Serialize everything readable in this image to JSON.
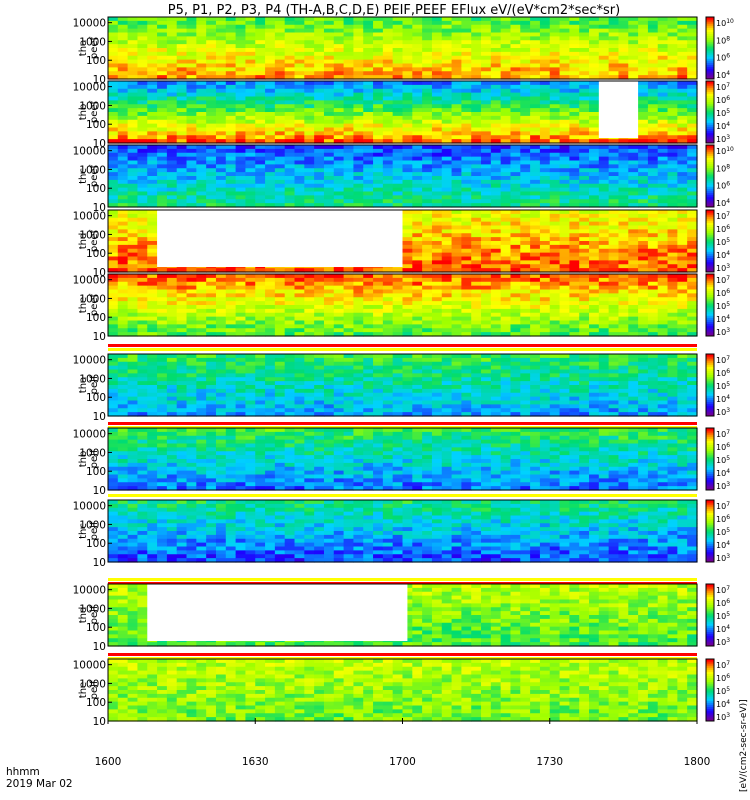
{
  "chart_data": {
    "type": "heatmap",
    "title": "P5, P1, P2, P3, P4 (TH-A,B,C,D,E) PEIF,PEEF EFlux eV/(eV*cm2*sec*sr)",
    "x_ticks": [
      "1600",
      "1630",
      "1700",
      "1730",
      "1800"
    ],
    "x_range": [
      "16:00",
      "18:00"
    ],
    "footer": {
      "label": "hhmm",
      "date": "2019 Mar 02"
    },
    "y_scale": "log",
    "y_range": [
      10,
      20000
    ],
    "y_ticks": [
      "10000",
      "1000",
      "100",
      "10"
    ],
    "colormap": "rainbow (purple-blue-cyan-green-yellow-red)",
    "colorbar_title": "[eV/(cm2-sec-sr-eV)]",
    "panels": [
      {
        "label": "tha peef",
        "colorbar_ticks": [
          "10^10",
          "10^8",
          "10^6",
          "10^4"
        ],
        "data_gaps": []
      },
      {
        "label": "thb peef",
        "colorbar_ticks": [
          "10^7",
          "10^6",
          "10^5",
          "10^4",
          "10^3"
        ],
        "data_gaps": [
          [
            "17:40",
            "17:48"
          ]
        ]
      },
      {
        "label": "thc peef",
        "colorbar_ticks": [
          "10^10",
          "10^8",
          "10^6",
          "10^4"
        ],
        "data_gaps": []
      },
      {
        "label": "thd peef",
        "colorbar_ticks": [
          "10^7",
          "10^6",
          "10^5",
          "10^4",
          "10^3"
        ],
        "data_gaps": [
          [
            "16:10",
            "17:00"
          ]
        ]
      },
      {
        "label": "the peef",
        "colorbar_ticks": [
          "10^7",
          "10^6",
          "10^5",
          "10^4",
          "10^3"
        ],
        "data_gaps": []
      },
      {
        "label": "tha peif",
        "colorbar_ticks": [
          "10^7",
          "10^6",
          "10^5",
          "10^4",
          "10^3"
        ],
        "data_gaps": []
      },
      {
        "label": "thb peif",
        "colorbar_ticks": [
          "10^7",
          "10^6",
          "10^5",
          "10^4",
          "10^3"
        ],
        "data_gaps": []
      },
      {
        "label": "thc peif",
        "colorbar_ticks": [
          "10^7",
          "10^6",
          "10^5",
          "10^4",
          "10^3"
        ],
        "data_gaps": []
      },
      {
        "label": "thd peif",
        "colorbar_ticks": [
          "10^7",
          "10^6",
          "10^5",
          "10^4",
          "10^3"
        ],
        "data_gaps": [
          [
            "16:08",
            "17:01"
          ]
        ]
      },
      {
        "label": "the peif",
        "colorbar_ticks": [
          "10^7",
          "10^6",
          "10^5",
          "10^4",
          "10^3"
        ],
        "data_gaps": []
      }
    ]
  },
  "colors": {
    "red": "#ff0000",
    "yellow": "#ffff00",
    "white": "#ffffff",
    "frame": "#000000"
  }
}
